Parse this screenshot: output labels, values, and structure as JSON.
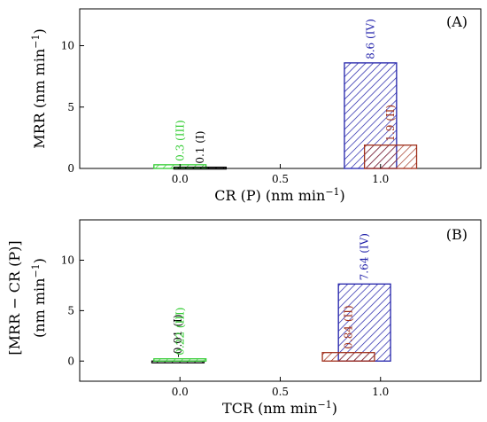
{
  "chart_data": [
    {
      "type": "bar",
      "panel_label": "(A)",
      "xlabel_base": "CR (P) (nm min",
      "xlabel_sup": "−1",
      "xlabel_end": ")",
      "ylabel_base": "MRR (nm min",
      "ylabel_sup": "−1",
      "ylabel_end": ")",
      "xlim": [
        -0.5,
        1.5
      ],
      "ylim": [
        0,
        13
      ],
      "xticks": [
        0.0,
        0.5,
        1.0
      ],
      "xtick_labels": [
        "0.0",
        "0.5",
        "1.0"
      ],
      "yticks": [
        0,
        5,
        10
      ],
      "ytick_labels": [
        "0",
        "5",
        "10"
      ],
      "bars": [
        {
          "x": 0.0,
          "width": 0.26,
          "value": 0.3,
          "label": "0.3 (III)",
          "color": "#33cc33"
        },
        {
          "x": 0.1,
          "width": 0.26,
          "value": 0.1,
          "label": "0.1 (I)",
          "color": "#000000"
        },
        {
          "x": 0.95,
          "width": 0.26,
          "value": 8.6,
          "label": "8.6 (IV)",
          "color": "#2222aa"
        },
        {
          "x": 1.05,
          "width": 0.26,
          "value": 1.9,
          "label": "1.9 (II)",
          "color": "#a0301c"
        }
      ]
    },
    {
      "type": "bar",
      "panel_label": "(B)",
      "xlabel_base": "TCR (nm min",
      "xlabel_sup": "−1",
      "xlabel_end": ")",
      "ylabel_line1": "[MRR − CR (P)]",
      "ylabel_line2_base": "(nm min",
      "ylabel_line2_sup": "−1",
      "ylabel_line2_end": ")",
      "xlim": [
        -0.5,
        1.5
      ],
      "ylim": [
        -2,
        14
      ],
      "xticks": [
        0.0,
        0.5,
        1.0
      ],
      "xtick_labels": [
        "0.0",
        "0.5",
        "1.0"
      ],
      "yticks": [
        0,
        5,
        10
      ],
      "ytick_labels": [
        "0",
        "5",
        "10"
      ],
      "bars": [
        {
          "x": -0.01,
          "width": 0.26,
          "value": -0.01,
          "label": "-0.01 (I)",
          "color": "#000000"
        },
        {
          "x": 0.0,
          "width": 0.26,
          "value": 0.22,
          "label": "0.22 (III)",
          "color": "#33cc33"
        },
        {
          "x": 0.92,
          "width": 0.26,
          "value": 7.64,
          "label": "7.64 (IV)",
          "color": "#2222aa"
        },
        {
          "x": 0.84,
          "width": 0.26,
          "value": 0.84,
          "label": "0.84 (II)",
          "color": "#a0301c"
        }
      ]
    }
  ]
}
